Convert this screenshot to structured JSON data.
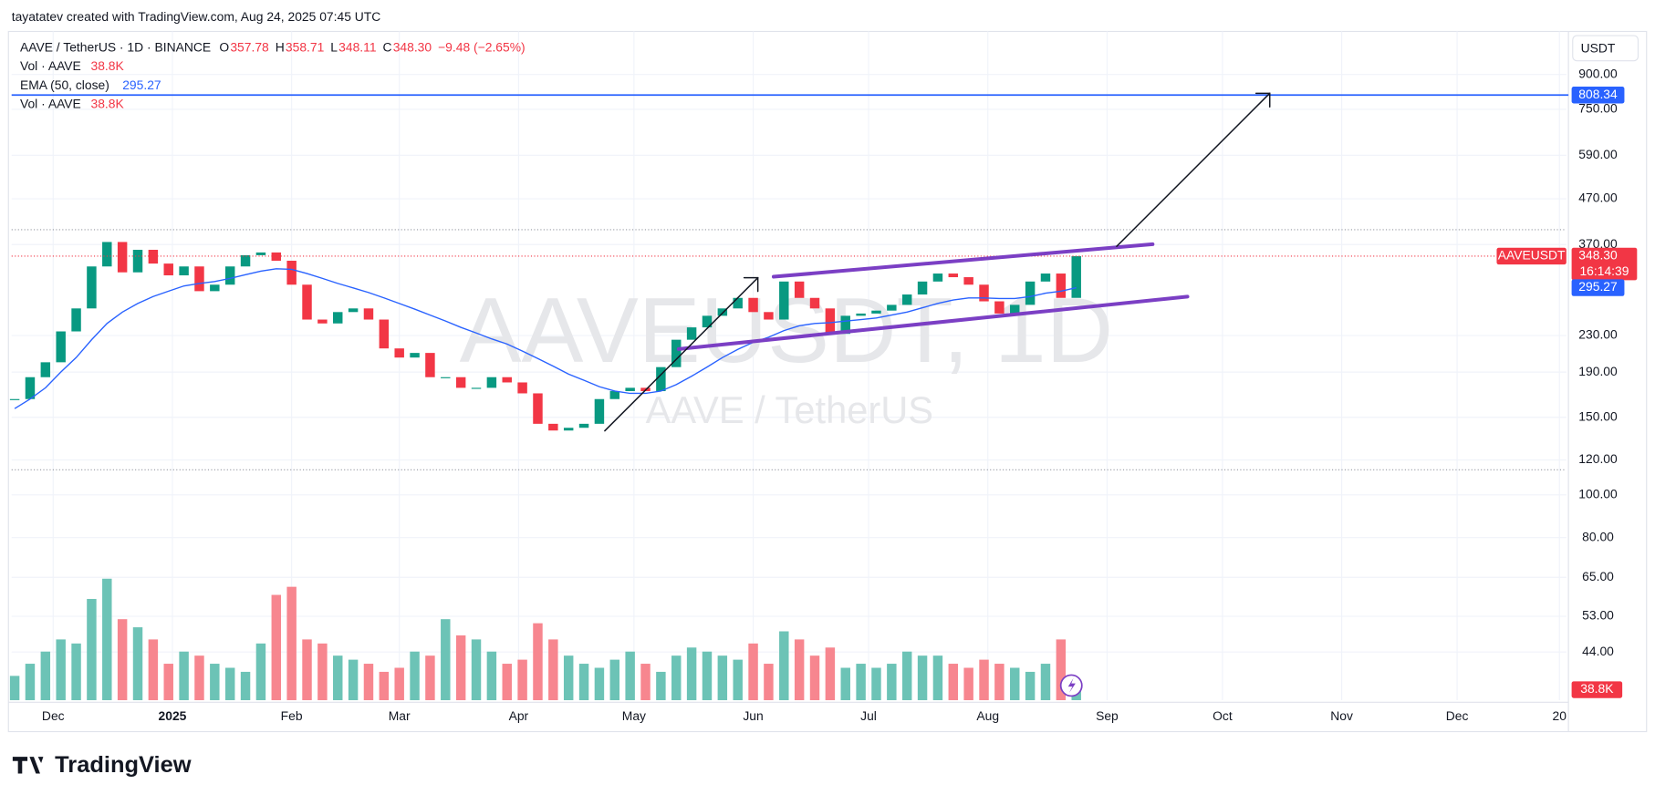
{
  "header": {
    "credit": "tayatatev created with TradingView.com, Aug 24, 2025 07:45 UTC",
    "logo": "TradingView"
  },
  "legend": {
    "symbol": "AAVE / TetherUS · 1D · BINANCE",
    "ohlc": [
      {
        "key": "O",
        "value": "357.78"
      },
      {
        "key": "H",
        "value": "358.71"
      },
      {
        "key": "L",
        "value": "348.11"
      },
      {
        "key": "C",
        "value": "348.30"
      }
    ],
    "change": "−9.48 (−2.65%)",
    "indicators": [
      {
        "value": "38.8K"
      },
      {
        "value": "295.27"
      },
      {
        "value": "38.8K"
      }
    ]
  },
  "watermark": {
    "symbol": "AAVEUSDT, 1D",
    "name": "AAVE / TetherUS"
  },
  "chart_data": {
    "type": "candlestick",
    "log_scale": true,
    "grid": true,
    "currency": "USDT",
    "categories": [
      null,
      null,
      null,
      null,
      null,
      null,
      null,
      null,
      null,
      null,
      null,
      null,
      null,
      null,
      null,
      null,
      null,
      null,
      null,
      null,
      null,
      null,
      null,
      null,
      null,
      null,
      null,
      null,
      null,
      null,
      null,
      null,
      null,
      null,
      null,
      null,
      null,
      null,
      null,
      null,
      null,
      null,
      null,
      null,
      null,
      null,
      null,
      null,
      null,
      null,
      null,
      null,
      null,
      null,
      null,
      null,
      null,
      null,
      null,
      null,
      null,
      null,
      null,
      null,
      null,
      null,
      null,
      null,
      null,
      null
    ],
    "series": [
      {
        "name": "AAVEUSDT",
        "up_color": "#089981",
        "down_color": "#f23645",
        "values": [
          165,
          185,
          200,
          235,
          265,
          330,
          375,
          320,
          360,
          335,
          315,
          330,
          290,
          300,
          330,
          350,
          355,
          340,
          300,
          250,
          245,
          260,
          265,
          250,
          215,
          205,
          210,
          185,
          185,
          175,
          175,
          185,
          180,
          170,
          145,
          140,
          142,
          145,
          165,
          172,
          175,
          172,
          195,
          225,
          240,
          255,
          265,
          280,
          260,
          250,
          305,
          280,
          265,
          232,
          255,
          258,
          262,
          270,
          285,
          305,
          318,
          312,
          300,
          275,
          258,
          270,
          305,
          318,
          280,
          348.3
        ]
      },
      {
        "name": "EMA (50, close)",
        "color": "#2962ff",
        "values": [
          157,
          165,
          175,
          190,
          205,
          225,
          245,
          260,
          272,
          282,
          290,
          298,
          302,
          305,
          310,
          316,
          322,
          326,
          325,
          318,
          310,
          302,
          295,
          288,
          280,
          272,
          264,
          256,
          248,
          240,
          233,
          226,
          220,
          212,
          204,
          196,
          188,
          182,
          176,
          172,
          170,
          170,
          172,
          178,
          186,
          195,
          205,
          214,
          222,
          228,
          236,
          242,
          245,
          246,
          248,
          250,
          252,
          256,
          260,
          266,
          272,
          277,
          280,
          280,
          279,
          279,
          282,
          287,
          290,
          295.27
        ]
      },
      {
        "name": "Vol · AAVE",
        "axis": "volume",
        "up_color": "#6cc3b6",
        "down_color": "#f7868f",
        "values": [
          60,
          90,
          120,
          150,
          140,
          250,
          300,
          200,
          180,
          150,
          90,
          120,
          110,
          90,
          80,
          70,
          140,
          260,
          280,
          150,
          140,
          110,
          100,
          90,
          70,
          80,
          120,
          110,
          200,
          160,
          150,
          120,
          90,
          100,
          190,
          150,
          110,
          90,
          80,
          100,
          120,
          90,
          70,
          110,
          130,
          120,
          110,
          100,
          140,
          90,
          170,
          150,
          110,
          130,
          80,
          90,
          80,
          90,
          120,
          110,
          110,
          90,
          80,
          100,
          90,
          80,
          70,
          90,
          150,
          38.8
        ]
      }
    ],
    "xlim": [
      -0.2,
      100.85
    ],
    "xticks": [
      {
        "value": 2.5,
        "label": "Dec"
      },
      {
        "value": 10.25,
        "label": "2025"
      },
      {
        "value": 18,
        "label": "Feb"
      },
      {
        "value": 25,
        "label": "Mar"
      },
      {
        "value": 32.75,
        "label": "Apr"
      },
      {
        "value": 40.25,
        "label": "May"
      },
      {
        "value": 48,
        "label": "Jun"
      },
      {
        "value": 55.5,
        "label": "Jul"
      },
      {
        "value": 63.25,
        "label": "Aug"
      },
      {
        "value": 71,
        "label": "Sep"
      },
      {
        "value": 78.5,
        "label": "Oct"
      },
      {
        "value": 86.25,
        "label": "Nov"
      },
      {
        "value": 93.75,
        "label": "Dec"
      },
      {
        "value": 100.4,
        "label": "20"
      }
    ],
    "ylim": [
      34.2,
      1127
    ],
    "yticks": [
      {
        "value": 900,
        "label": "900.00"
      },
      {
        "value": 750,
        "label": "750.00"
      },
      {
        "value": 590,
        "label": "590.00"
      },
      {
        "value": 470,
        "label": "470.00"
      },
      {
        "value": 370,
        "label": "370.00"
      },
      {
        "value": 230,
        "label": "230.00"
      },
      {
        "value": 190,
        "label": "190.00"
      },
      {
        "value": 150,
        "label": "150.00"
      },
      {
        "value": 120,
        "label": "120.00"
      },
      {
        "value": 100,
        "label": "100.00"
      },
      {
        "value": 80,
        "label": "80.00"
      },
      {
        "value": 65,
        "label": "65.00"
      },
      {
        "value": 53,
        "label": "53.00"
      },
      {
        "value": 44,
        "label": "44.00"
      }
    ],
    "volume_lim": [
      0,
      440
    ],
    "dotted_levels": [
      400,
      114
    ],
    "target_level": {
      "value": 808.34,
      "label": "808.34",
      "color": "#2962ff"
    },
    "last_labels": {
      "price": "348.30",
      "countdown": "16:14:39",
      "ema": "295.27",
      "volume": "38.8K"
    }
  }
}
